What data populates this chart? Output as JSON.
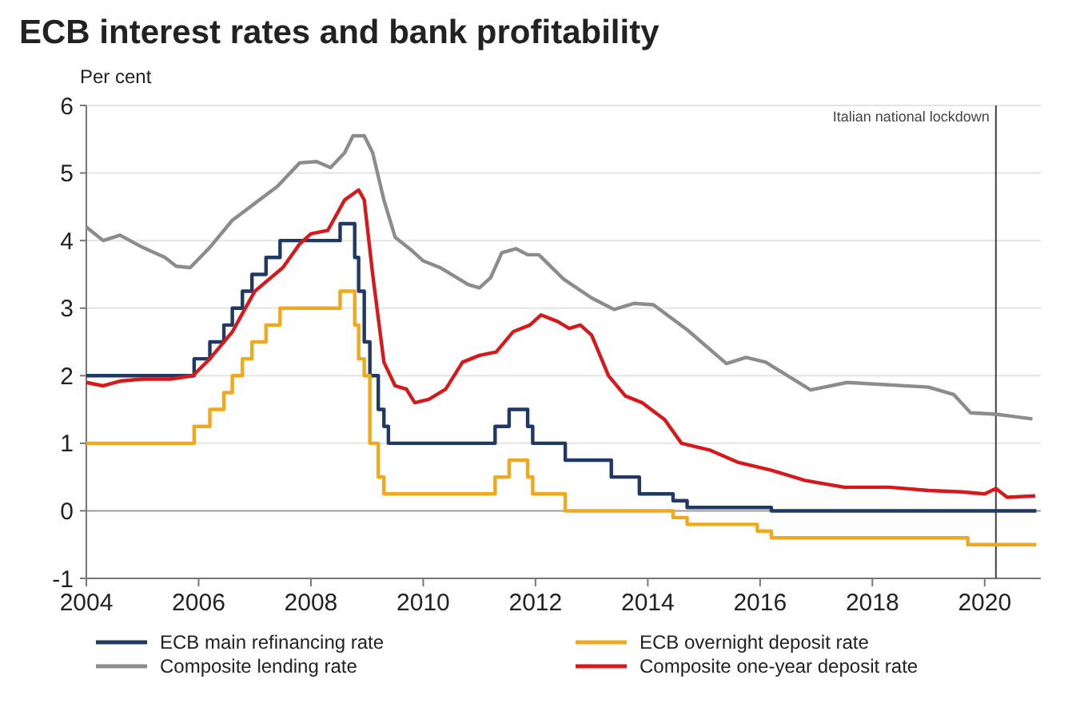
{
  "chart_data": {
    "type": "line",
    "title": "ECB interest rates and bank profitability",
    "ylabel": "Per cent",
    "xlim": [
      2004,
      2021
    ],
    "xticks": [
      2004,
      2006,
      2008,
      2010,
      2012,
      2014,
      2016,
      2018,
      2020
    ],
    "ylim": [
      -1,
      6
    ],
    "yticks": [
      -1,
      0,
      1,
      2,
      3,
      4,
      5,
      6
    ],
    "grid": "y",
    "legend": "bottom",
    "ref_lines": [
      {
        "axis": "x",
        "value": 2020.2,
        "label": "Italian national lockdown",
        "color": "#404040"
      }
    ],
    "series": [
      {
        "name": "ECB main refinancing rate",
        "type": "step",
        "color": "#1f3864",
        "x": [
          2004,
          2005.92,
          2006.2,
          2006.45,
          2006.6,
          2006.78,
          2006.95,
          2007.2,
          2007.45,
          2008.52,
          2008.78,
          2008.85,
          2008.95,
          2009.05,
          2009.2,
          2009.3,
          2009.38,
          2011.28,
          2011.53,
          2011.86,
          2011.95,
          2012.53,
          2013.35,
          2013.85,
          2014.45,
          2014.7,
          2016.2,
          2020.92
        ],
        "values": [
          2,
          2.25,
          2.5,
          2.75,
          3,
          3.25,
          3.5,
          3.75,
          4,
          4.25,
          3.75,
          3.25,
          2.5,
          2,
          1.5,
          1.25,
          1,
          1.25,
          1.5,
          1.25,
          1,
          0.75,
          0.5,
          0.25,
          0.15,
          0.05,
          0,
          0
        ]
      },
      {
        "name": "Composite lending rate",
        "color": "#8c8c8c",
        "x": [
          2004,
          2004.3,
          2004.6,
          2005,
          2005.4,
          2005.6,
          2005.85,
          2006.2,
          2006.6,
          2007,
          2007.4,
          2007.8,
          2008.1,
          2008.35,
          2008.6,
          2008.75,
          2008.95,
          2009.1,
          2009.3,
          2009.5,
          2009.8,
          2010,
          2010.3,
          2010.6,
          2010.8,
          2011,
          2011.2,
          2011.4,
          2011.65,
          2011.86,
          2012.06,
          2012.5,
          2013,
          2013.4,
          2013.75,
          2014.1,
          2014.7,
          2015.4,
          2015.75,
          2016.1,
          2016.9,
          2017.55,
          2019,
          2019.45,
          2019.75,
          2020.2,
          2020.85
        ],
        "values": [
          4.2,
          4,
          4.08,
          3.9,
          3.75,
          3.62,
          3.6,
          3.9,
          4.3,
          4.55,
          4.8,
          5.15,
          5.17,
          5.08,
          5.3,
          5.55,
          5.55,
          5.3,
          4.6,
          4.05,
          3.85,
          3.7,
          3.6,
          3.45,
          3.35,
          3.3,
          3.45,
          3.82,
          3.88,
          3.79,
          3.79,
          3.43,
          3.15,
          2.98,
          3.07,
          3.05,
          2.68,
          2.18,
          2.27,
          2.2,
          1.79,
          1.9,
          1.83,
          1.72,
          1.45,
          1.43,
          1.36
        ]
      },
      {
        "name": "ECB overnight deposit rate",
        "type": "step",
        "color": "#f0a81c",
        "x": [
          2004,
          2005.92,
          2006.2,
          2006.45,
          2006.6,
          2006.78,
          2006.95,
          2007.2,
          2007.45,
          2008.52,
          2008.78,
          2008.85,
          2008.95,
          2009.05,
          2009.2,
          2009.3,
          2011.28,
          2011.53,
          2011.86,
          2011.95,
          2012.53,
          2014.45,
          2014.7,
          2015.95,
          2016.2,
          2019.7,
          2020.92
        ],
        "values": [
          1,
          1.25,
          1.5,
          1.75,
          2,
          2.25,
          2.5,
          2.75,
          3,
          3.25,
          2.75,
          2.25,
          2,
          1,
          0.5,
          0.25,
          0.5,
          0.75,
          0.5,
          0.25,
          0,
          -0.1,
          -0.2,
          -0.3,
          -0.4,
          -0.5,
          -0.5
        ]
      },
      {
        "name": "Composite one-year deposit rate",
        "color": "#d7191c",
        "x": [
          2004,
          2004.3,
          2004.6,
          2005,
          2005.5,
          2005.9,
          2006.2,
          2006.6,
          2007,
          2007.5,
          2007.8,
          2008,
          2008.3,
          2008.6,
          2008.85,
          2008.95,
          2009.1,
          2009.3,
          2009.5,
          2009.7,
          2009.85,
          2010.1,
          2010.4,
          2010.7,
          2011,
          2011.3,
          2011.6,
          2011.9,
          2012.1,
          2012.4,
          2012.6,
          2012.8,
          2013,
          2013.3,
          2013.6,
          2013.9,
          2014.3,
          2014.6,
          2015.1,
          2015.6,
          2016.2,
          2016.8,
          2017.5,
          2018.3,
          2019,
          2019.6,
          2020,
          2020.2,
          2020.4,
          2020.9
        ],
        "values": [
          1.9,
          1.85,
          1.92,
          1.95,
          1.95,
          2,
          2.25,
          2.65,
          3.25,
          3.6,
          3.95,
          4.1,
          4.15,
          4.6,
          4.75,
          4.6,
          3.5,
          2.2,
          1.85,
          1.8,
          1.6,
          1.65,
          1.8,
          2.2,
          2.3,
          2.35,
          2.65,
          2.75,
          2.9,
          2.8,
          2.7,
          2.75,
          2.6,
          2,
          1.7,
          1.6,
          1.35,
          1,
          0.9,
          0.72,
          0.6,
          0.45,
          0.35,
          0.35,
          0.3,
          0.28,
          0.25,
          0.33,
          0.2,
          0.22
        ]
      }
    ]
  }
}
